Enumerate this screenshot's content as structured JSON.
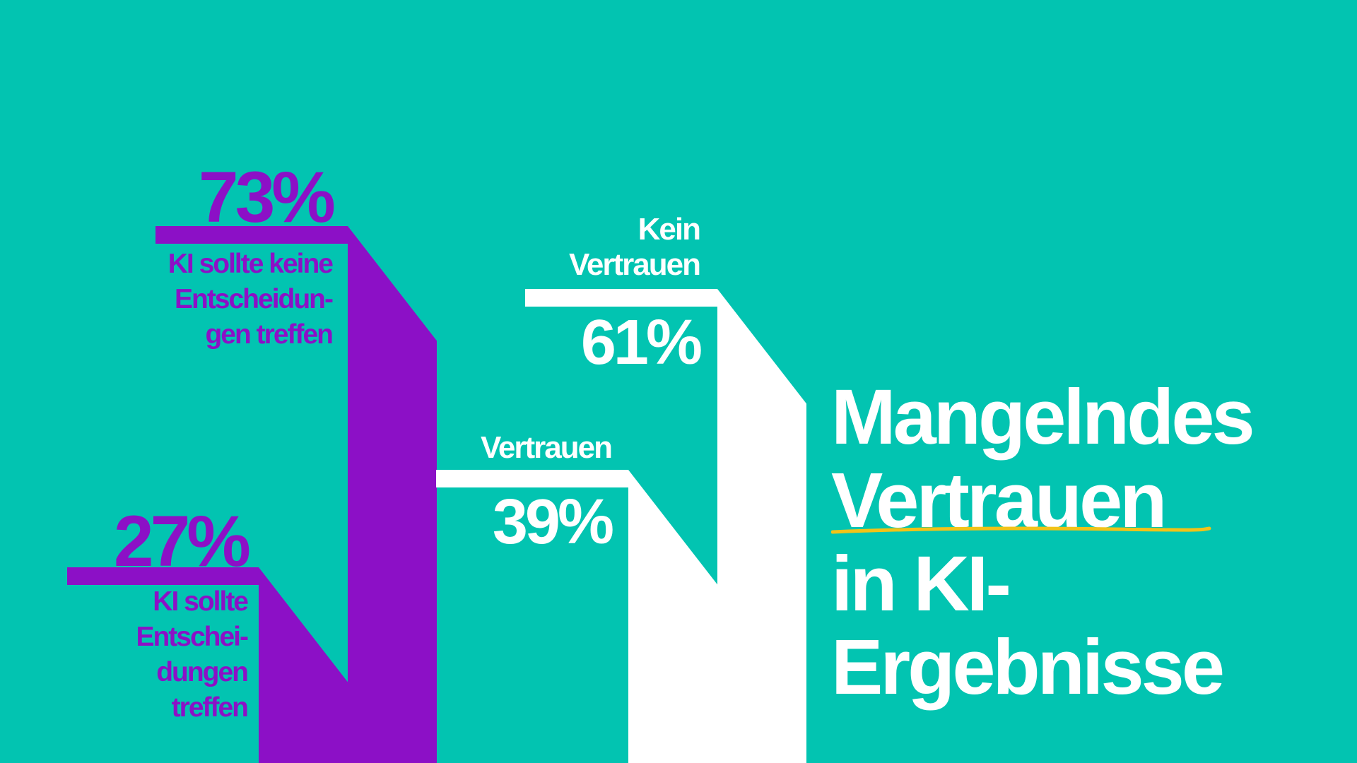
{
  "colors": {
    "background": "#02c4b1",
    "purple": "#8c10c6",
    "white": "#ffffff",
    "underline": "#f2c318"
  },
  "title": {
    "line1": "Mangelndes",
    "line2": "Vertrauen",
    "line3": "in KI-",
    "line4": "Ergebnisse"
  },
  "chart_data": [
    {
      "type": "bar",
      "categories": [
        "KI sollte Entschei-\ndungen\ntreffen",
        "KI sollte keine\nEntscheidun-\ngen treffen"
      ],
      "values": [
        27,
        73
      ],
      "value_labels": [
        "27%",
        "73%"
      ],
      "color": "#8c10c6"
    },
    {
      "type": "bar",
      "categories": [
        "Vertrauen",
        "Kein\nVertrauen"
      ],
      "values": [
        39,
        61
      ],
      "value_labels": [
        "39%",
        "61%"
      ],
      "color": "#ffffff"
    }
  ]
}
